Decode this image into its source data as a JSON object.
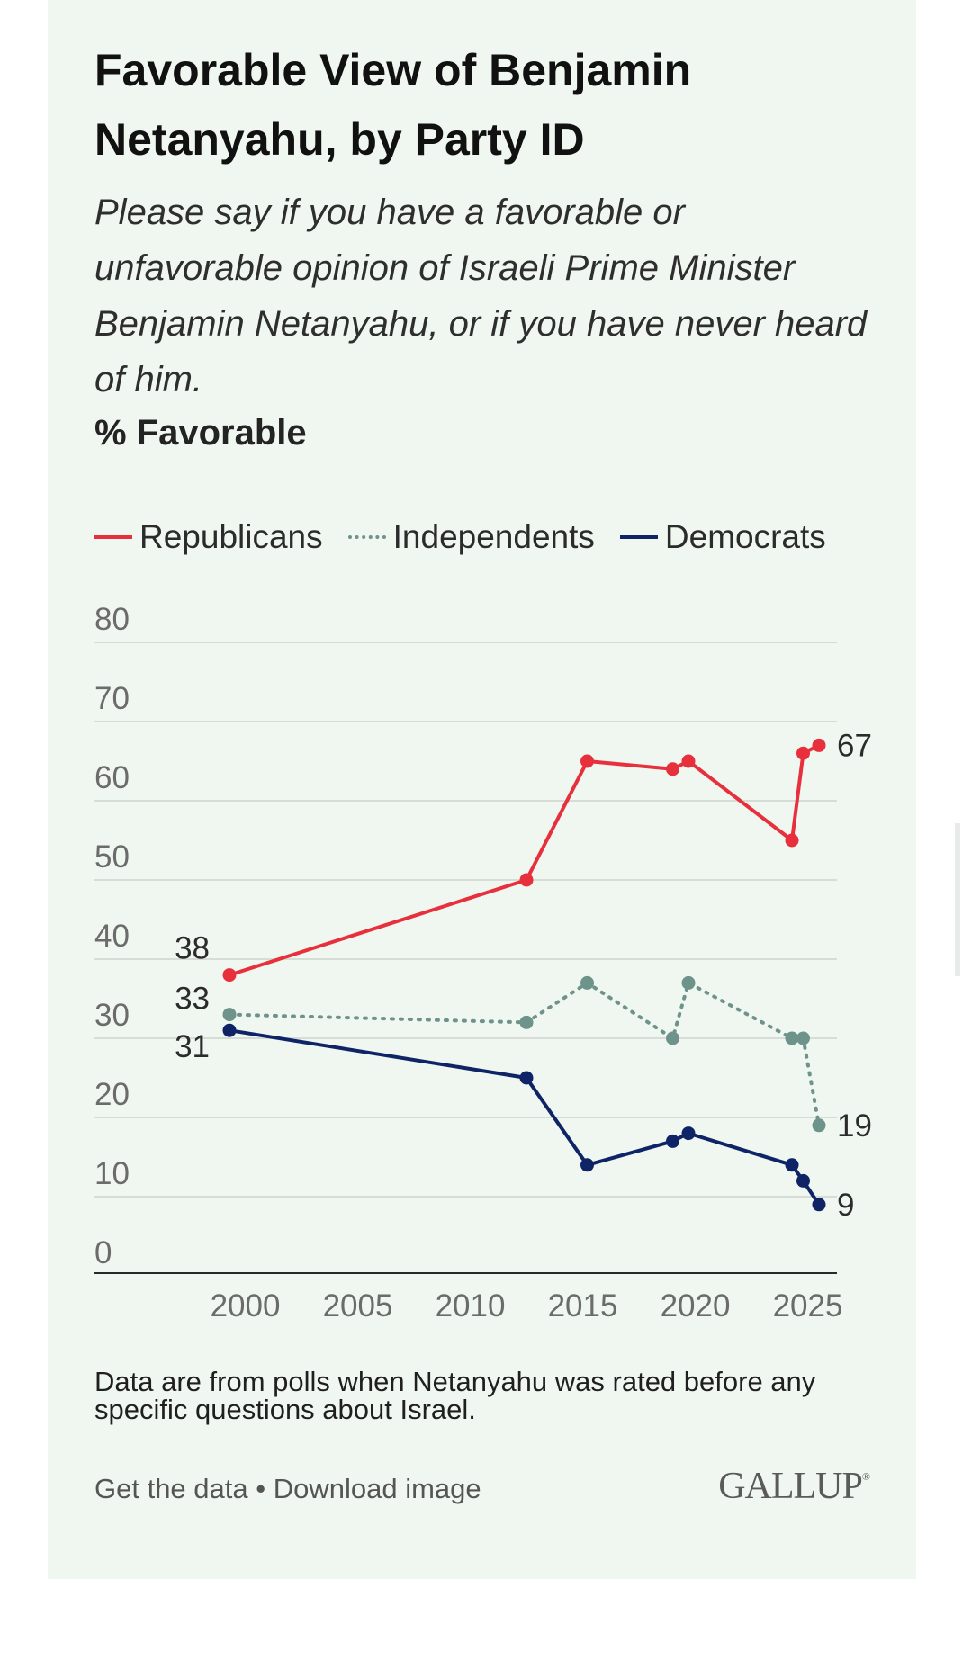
{
  "title": "Favorable View of Benjamin Netanyahu, by Party ID",
  "subtitle": "Please say if you have a favorable or unfavorable opinion of Israeli Prime Minister Benjamin Netanyahu, or if you have never heard of him.",
  "measure": "% Favorable",
  "legend": [
    {
      "name": "Republicans",
      "color": "#e8303c",
      "style": "solid"
    },
    {
      "name": "Independents",
      "color": "#6e938a",
      "style": "dotted"
    },
    {
      "name": "Democrats",
      "color": "#0f2466",
      "style": "solid"
    }
  ],
  "footnote": "Data are from polls when Netanyahu was rated before any specific questions about Israel.",
  "links": {
    "get_data": "Get the data",
    "separator": " • ",
    "download": "Download image"
  },
  "logo": "GALLUP",
  "chart_data": {
    "type": "line",
    "title": "Favorable View of Benjamin Netanyahu, by Party ID",
    "ylabel": "% Favorable",
    "xlabel": "",
    "xlim": [
      1993.3,
      2026.3
    ],
    "ylim": [
      0,
      80
    ],
    "x_ticks": [
      2000,
      2005,
      2010,
      2015,
      2020,
      2025
    ],
    "y_ticks": [
      0,
      10,
      20,
      30,
      40,
      50,
      60,
      70,
      80
    ],
    "grid": "horizontal",
    "legend_position": "top",
    "series": [
      {
        "name": "Republicans",
        "color": "#e8303c",
        "style": "solid",
        "x": [
          1999.3,
          2012.5,
          2015.2,
          2019.0,
          2019.7,
          2024.3,
          2024.8,
          2025.5
        ],
        "y": [
          38,
          50,
          65,
          64,
          65,
          55,
          66,
          67
        ],
        "label_first": "38",
        "label_last": "67"
      },
      {
        "name": "Independents",
        "color": "#6e938a",
        "style": "dotted",
        "x": [
          1999.3,
          2012.5,
          2015.2,
          2019.0,
          2019.7,
          2024.3,
          2024.8,
          2025.5
        ],
        "y": [
          33,
          32,
          37,
          30,
          37,
          30,
          30,
          19
        ],
        "label_first": "33",
        "label_last": "19"
      },
      {
        "name": "Democrats",
        "color": "#0f2466",
        "style": "solid",
        "x": [
          1999.3,
          2012.5,
          2015.2,
          2019.0,
          2019.7,
          2024.3,
          2024.8,
          2025.5
        ],
        "y": [
          31,
          25,
          14,
          17,
          18,
          14,
          12,
          9
        ],
        "label_first": "31",
        "label_last": "9"
      }
    ]
  }
}
